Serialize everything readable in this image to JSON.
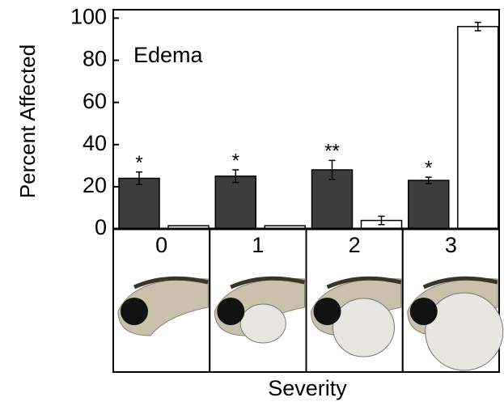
{
  "chart_data": {
    "type": "bar",
    "title": "Edema",
    "x_label": "Severity",
    "y_label": "Percent Affected",
    "categories": [
      "0",
      "1",
      "2",
      "3"
    ],
    "series": [
      {
        "color": "#3d3d3d",
        "values": [
          24,
          25,
          28,
          23
        ],
        "errors": [
          3,
          3,
          4.5,
          1.5
        ]
      },
      {
        "color": "#ffffff",
        "values": [
          1.5,
          1.5,
          4,
          96
        ],
        "errors": [
          null,
          null,
          2,
          2
        ]
      }
    ],
    "annotations": [
      "*",
      "*",
      "**",
      "*"
    ],
    "ylim": [
      0,
      104
    ],
    "yticks": [
      0,
      20,
      40,
      60,
      80,
      100
    ]
  }
}
